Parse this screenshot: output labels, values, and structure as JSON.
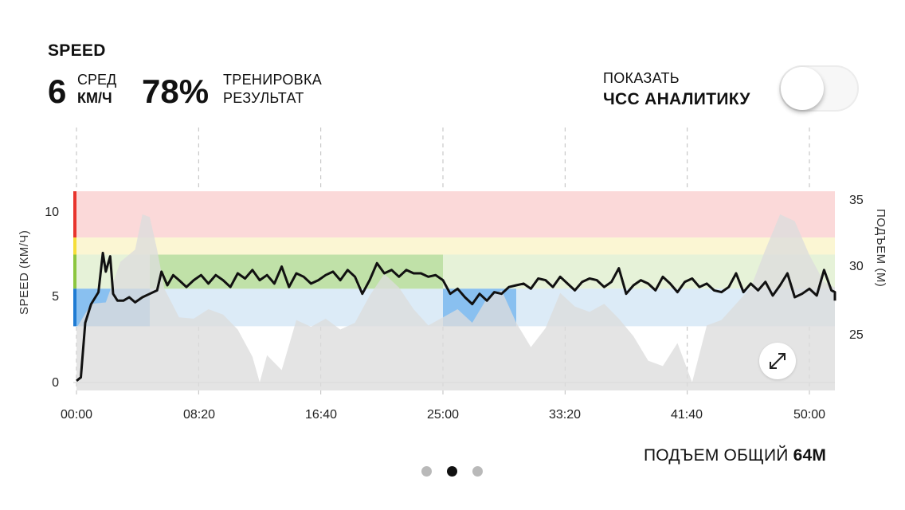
{
  "header": {
    "title": "SPEED",
    "avg_value": "6",
    "avg_label_top": "СРЕД",
    "avg_label_bottom": "КМ/Ч",
    "training_value": "78%",
    "training_label_top": "ТРЕНИРОВКА",
    "training_label_bottom": "РЕЗУЛЬТАТ"
  },
  "hr_toggle": {
    "label_top": "ПОКАЗАТЬ",
    "label_bottom": "ЧСС АНАЛИТИКУ",
    "enabled": false
  },
  "chart": {
    "left_axis_label": "SPEED (КМ/Ч)",
    "right_axis_label": "ПОДЪЕМ (М)",
    "left_ticks": [
      "10",
      "5",
      "0"
    ],
    "right_ticks": [
      "35",
      "30",
      "25"
    ],
    "x_ticks": [
      "00:00",
      "08:20",
      "16:40",
      "25:00",
      "33:20",
      "41:40",
      "50:00"
    ]
  },
  "footer": {
    "elevation_label": "ПОДЪЕМ ОБЩИЙ",
    "elevation_value": "64М"
  },
  "pagination": {
    "count": 3,
    "active": 2
  },
  "colors": {
    "zone_red": "#fbd9d9",
    "zone_yellow": "#fbf6d3",
    "zone_green": "#e6f2d8",
    "zone_blue": "#dcebf7",
    "zone_green_strong": "#b8dea0",
    "zone_blue_strong": "#7ab8ee",
    "elevation": "#dddddd",
    "speed_line": "#111111"
  },
  "chart_data": {
    "type": "line",
    "title": "SPEED",
    "xlabel": "",
    "ylabel": "SPEED (КМ/Ч)",
    "y2label": "ПОДЪЕМ (М)",
    "xlim_minutes": [
      0,
      52.3
    ],
    "ylim": [
      0,
      11.5
    ],
    "y2_ticks": [
      25,
      30,
      35
    ],
    "zones_kmh": [
      {
        "name": "red",
        "min": 8.5,
        "max": 11
      },
      {
        "name": "yellow",
        "min": 7.5,
        "max": 8.5
      },
      {
        "name": "green",
        "min": 5.5,
        "max": 7.5
      },
      {
        "name": "blue",
        "min": 3.3,
        "max": 5.5
      }
    ],
    "highlighted_segments": [
      {
        "zone": "blue",
        "from_min": 0,
        "to_min": 5.0
      },
      {
        "zone": "green",
        "from_min": 5.0,
        "to_min": 25.0
      },
      {
        "zone": "blue",
        "from_min": 25.0,
        "to_min": 30.0
      }
    ],
    "series": [
      {
        "name": "SPEED",
        "x_minutes": [
          0,
          0.3,
          0.6,
          1,
          1.5,
          1.8,
          2,
          2.3,
          2.5,
          2.8,
          3.2,
          3.6,
          4,
          4.5,
          5,
          5.5,
          5.8,
          6.2,
          6.6,
          7,
          7.5,
          8,
          8.5,
          9,
          9.5,
          10,
          10.5,
          11,
          11.5,
          12,
          12.5,
          13,
          13.5,
          14,
          14.5,
          15,
          15.5,
          16,
          16.5,
          17,
          17.5,
          18,
          18.5,
          19,
          19.5,
          20,
          20.5,
          21,
          21.5,
          22,
          22.5,
          23,
          23.5,
          24,
          24.5,
          25,
          25.5,
          26,
          26.5,
          27,
          27.5,
          28,
          28.5,
          29,
          29.5,
          30,
          30.5,
          31,
          31.5,
          32,
          32.5,
          33,
          33.5,
          34,
          34.5,
          35,
          35.5,
          36,
          36.5,
          37,
          37.5,
          38,
          38.5,
          39,
          39.5,
          40,
          40.5,
          41,
          41.5,
          42,
          42.5,
          43,
          43.5,
          44,
          44.5,
          45,
          45.5,
          46,
          46.5,
          47,
          47.5,
          48,
          48.5,
          49,
          49.5,
          50,
          50.5,
          51,
          51.5,
          52,
          52.3
        ],
        "y_kmh": [
          0.1,
          0.3,
          3.5,
          4.6,
          5.3,
          7.6,
          6.5,
          7.4,
          5.2,
          4.8,
          4.8,
          5.0,
          4.7,
          5.0,
          5.2,
          5.4,
          6.5,
          5.7,
          6.3,
          6.0,
          5.6,
          6.0,
          6.3,
          5.8,
          6.3,
          6.0,
          5.6,
          6.4,
          6.1,
          6.6,
          6.0,
          6.3,
          5.8,
          6.8,
          5.6,
          6.4,
          6.2,
          5.8,
          6.0,
          6.3,
          6.5,
          6.0,
          6.6,
          6.2,
          5.2,
          6.0,
          7.0,
          6.4,
          6.6,
          6.2,
          6.6,
          6.4,
          6.4,
          6.2,
          6.3,
          6.0,
          5.2,
          5.5,
          5.0,
          4.6,
          5.2,
          4.8,
          5.3,
          5.2,
          5.6,
          5.7,
          5.8,
          5.5,
          6.1,
          6.0,
          5.6,
          6.2,
          5.8,
          5.4,
          5.9,
          6.1,
          6.0,
          5.6,
          5.9,
          6.7,
          5.2,
          5.7,
          6.0,
          5.8,
          5.4,
          6.2,
          5.8,
          5.3,
          5.9,
          6.1,
          5.6,
          5.8,
          5.4,
          5.3,
          5.6,
          6.4,
          5.3,
          5.8,
          5.4,
          5.9,
          5.1,
          5.7,
          6.4,
          5.0,
          5.2,
          5.5,
          5.1,
          6.6,
          5.4,
          5.3,
          4.8
        ]
      },
      {
        "name": "ПОДЪЕМ",
        "axis": "right",
        "x_minutes": [
          0,
          1,
          2,
          3,
          4,
          4.5,
          5,
          5.5,
          6,
          7,
          8,
          9,
          10,
          11,
          12,
          12.5,
          13,
          14,
          15,
          16,
          17,
          18,
          19,
          20,
          21,
          22,
          23,
          24,
          25,
          26,
          27,
          28,
          29,
          30,
          31,
          32,
          33,
          34,
          35,
          36,
          37,
          38,
          39,
          40,
          41,
          42,
          43,
          44,
          45,
          46,
          47,
          48,
          49,
          50,
          51,
          52,
          52.3
        ],
        "y_m": [
          25.6,
          27.4,
          27.5,
          30.5,
          31.4,
          34,
          33.8,
          31.4,
          28.5,
          26.4,
          26.3,
          27,
          26.6,
          25.5,
          23.5,
          21.6,
          23.6,
          22.5,
          26.2,
          25.7,
          26.3,
          25.5,
          26,
          28,
          29.6,
          28.6,
          27,
          25.8,
          26.4,
          27,
          26,
          27.8,
          28.4,
          26,
          24.2,
          25.6,
          28.2,
          27.2,
          26.8,
          27.4,
          26.3,
          25,
          23.2,
          22.8,
          24.5,
          21.6,
          25.8,
          26.2,
          27.4,
          28.6,
          31.4,
          34,
          33.5,
          31,
          29,
          28.6,
          30
        ]
      }
    ]
  }
}
